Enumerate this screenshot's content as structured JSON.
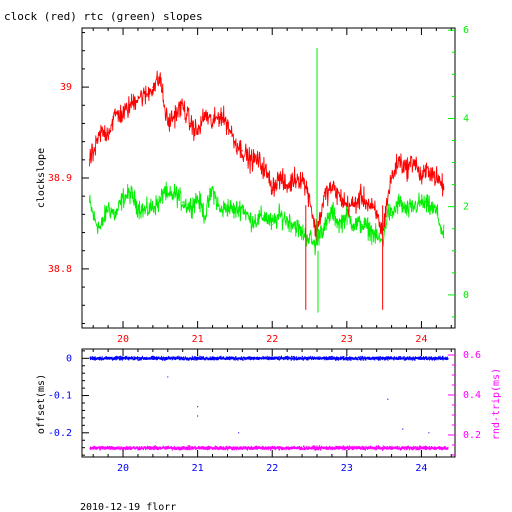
{
  "title": "clock (red) rtc (green) slopes",
  "footer": "2010-12-19 florr",
  "colors": {
    "clock": "#ff0000",
    "rtc": "#00ee00",
    "offset": "#0000ff",
    "rndtrip": "#ff00ff",
    "axis": "#000000"
  },
  "chart_data": [
    {
      "type": "line",
      "title": "clock (red) rtc (green) slopes",
      "ylabel": "clockslope",
      "y2label": "",
      "xlim": [
        19.45,
        24.45
      ],
      "ylim": [
        38.735,
        39.065
      ],
      "y2lim": [
        -0.75,
        6.05
      ],
      "x_ticks": [
        "20",
        "21",
        "22",
        "23",
        "24"
      ],
      "y_ticks": [
        "38.8",
        "38.9",
        "39"
      ],
      "y2_ticks": [
        "0",
        "2",
        "4",
        "6"
      ],
      "series": [
        {
          "axis": "left",
          "color": "#ff0000",
          "x": [
            19.55,
            19.62,
            19.7,
            19.8,
            19.9,
            20.0,
            20.1,
            20.2,
            20.3,
            20.4,
            20.5,
            20.55,
            20.6,
            20.7,
            20.8,
            20.9,
            21.0,
            21.1,
            21.2,
            21.3,
            21.4,
            21.5,
            21.6,
            21.7,
            21.8,
            21.9,
            22.0,
            22.1,
            22.2,
            22.3,
            22.4,
            22.5,
            22.58,
            22.65,
            22.7,
            22.8,
            22.9,
            23.0,
            23.1,
            23.2,
            23.3,
            23.4,
            23.48,
            23.55,
            23.6,
            23.7,
            23.8,
            23.9,
            24.0,
            24.1,
            24.2,
            24.3
          ],
          "y": [
            38.92,
            38.93,
            38.95,
            38.95,
            38.97,
            38.97,
            38.98,
            38.99,
            38.99,
            39.0,
            39.01,
            38.98,
            38.96,
            38.97,
            38.98,
            38.96,
            38.95,
            38.97,
            38.96,
            38.97,
            38.96,
            38.94,
            38.93,
            38.92,
            38.92,
            38.91,
            38.89,
            38.9,
            38.89,
            38.9,
            38.9,
            38.88,
            38.84,
            38.86,
            38.88,
            38.89,
            38.88,
            38.87,
            38.87,
            38.88,
            38.87,
            38.86,
            38.84,
            38.88,
            38.9,
            38.92,
            38.91,
            38.92,
            38.9,
            38.91,
            38.9,
            38.89
          ]
        },
        {
          "axis": "right",
          "color": "#00ee00",
          "x": [
            19.55,
            19.62,
            19.7,
            19.8,
            19.9,
            20.0,
            20.1,
            20.2,
            20.3,
            20.4,
            20.5,
            20.55,
            20.6,
            20.7,
            20.8,
            20.9,
            21.0,
            21.1,
            21.2,
            21.3,
            21.4,
            21.5,
            21.6,
            21.7,
            21.8,
            21.9,
            22.0,
            22.1,
            22.2,
            22.3,
            22.4,
            22.5,
            22.58,
            22.65,
            22.7,
            22.8,
            22.9,
            23.0,
            23.1,
            23.2,
            23.3,
            23.4,
            23.48,
            23.55,
            23.6,
            23.7,
            23.8,
            23.9,
            24.0,
            24.1,
            24.2,
            24.3
          ],
          "y": [
            2.1,
            1.7,
            1.5,
            2.0,
            1.8,
            2.2,
            2.3,
            2.0,
            1.9,
            2.0,
            2.1,
            2.4,
            2.2,
            2.3,
            2.1,
            2.0,
            2.2,
            1.8,
            2.4,
            1.9,
            2.0,
            1.9,
            2.0,
            1.7,
            1.7,
            1.8,
            1.6,
            1.8,
            1.7,
            1.6,
            1.4,
            1.3,
            1.1,
            1.5,
            1.5,
            1.9,
            1.6,
            1.8,
            1.6,
            1.6,
            1.5,
            1.3,
            1.2,
            1.9,
            1.8,
            2.1,
            1.9,
            2.0,
            2.1,
            2.0,
            1.9,
            1.3
          ]
        }
      ],
      "annotations": [
        {
          "x": 22.6,
          "y2": 5.6,
          "note": "green spike"
        },
        {
          "x": 23.48,
          "y": 38.755,
          "note": "red dip"
        },
        {
          "x": 22.45,
          "y": 38.755,
          "note": "red dip"
        }
      ]
    },
    {
      "type": "scatter",
      "ylabel": "offset(ms)",
      "y2label": "rnd-trip(ms)",
      "xlim": [
        19.45,
        24.45
      ],
      "ylim": [
        -0.265,
        0.025
      ],
      "y2lim": [
        0.09,
        0.63
      ],
      "x_ticks": [
        "20",
        "21",
        "22",
        "23",
        "24"
      ],
      "y_ticks": [
        "0",
        "-0.1",
        "-0.2"
      ],
      "y2_ticks": [
        "0.2",
        "0.4",
        "0.6"
      ],
      "series": [
        {
          "axis": "left",
          "color": "#0000ff",
          "x_range": [
            19.55,
            24.35
          ],
          "y_center": 0.0,
          "y_spread": 0.006
        },
        {
          "axis": "right",
          "color": "#ff00ff",
          "x_range": [
            19.55,
            24.35
          ],
          "y_center": 0.135,
          "y_spread": 0.012
        }
      ]
    }
  ]
}
